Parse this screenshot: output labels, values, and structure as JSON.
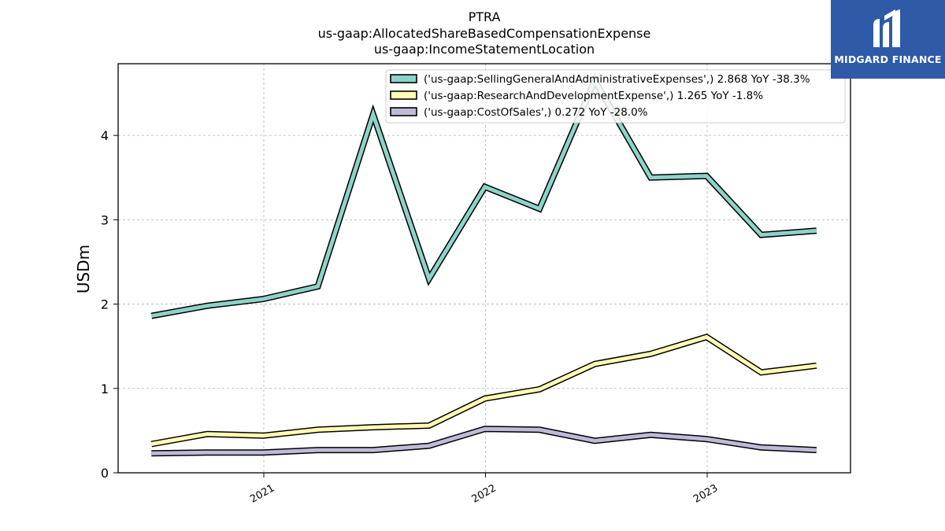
{
  "brand": {
    "name": "MIDGARD FINANCE",
    "color": "#2f5aa8"
  },
  "chart_data": {
    "type": "line",
    "title": "PTRA",
    "subtitle_lines": [
      "us-gaap:AllocatedShareBasedCompensationExpense",
      "us-gaap:IncomeStatementLocation"
    ],
    "xlabel": "",
    "ylabel": "USDm",
    "x": [
      "2020-06-30",
      "2020-09-30",
      "2020-12-31",
      "2021-03-31",
      "2021-06-30",
      "2021-09-30",
      "2021-12-31",
      "2022-03-31",
      "2022-06-30",
      "2022-09-30",
      "2022-12-31",
      "2023-03-31",
      "2023-06-30"
    ],
    "xticks": [
      "2021",
      "2022",
      "2023"
    ],
    "ylim": [
      0,
      4.85
    ],
    "yticks": [
      "0",
      "1",
      "2",
      "3",
      "4"
    ],
    "grid": true,
    "legend_position": "top-right",
    "series": [
      {
        "name": "('us-gaap:SellingGeneralAndAdministrativeExpenses',) 2.868 YoY -38.3%",
        "color": "#8dd3c7",
        "values": [
          1.86,
          1.98,
          2.06,
          2.21,
          4.25,
          2.3,
          3.39,
          3.13,
          4.65,
          3.5,
          3.52,
          2.82,
          2.87
        ]
      },
      {
        "name": "('us-gaap:ResearchAndDevelopmentExpense',) 1.265 YoY -1.8%",
        "color": "#ffffb3",
        "values": [
          0.34,
          0.46,
          0.44,
          0.51,
          0.54,
          0.56,
          0.88,
          0.99,
          1.29,
          1.41,
          1.61,
          1.19,
          1.27
        ]
      },
      {
        "name": "('us-gaap:CostOfSales',) 0.272 YoY -28.0%",
        "color": "#bebada",
        "values": [
          0.23,
          0.24,
          0.24,
          0.27,
          0.27,
          0.32,
          0.52,
          0.51,
          0.38,
          0.45,
          0.4,
          0.3,
          0.27
        ]
      }
    ]
  }
}
